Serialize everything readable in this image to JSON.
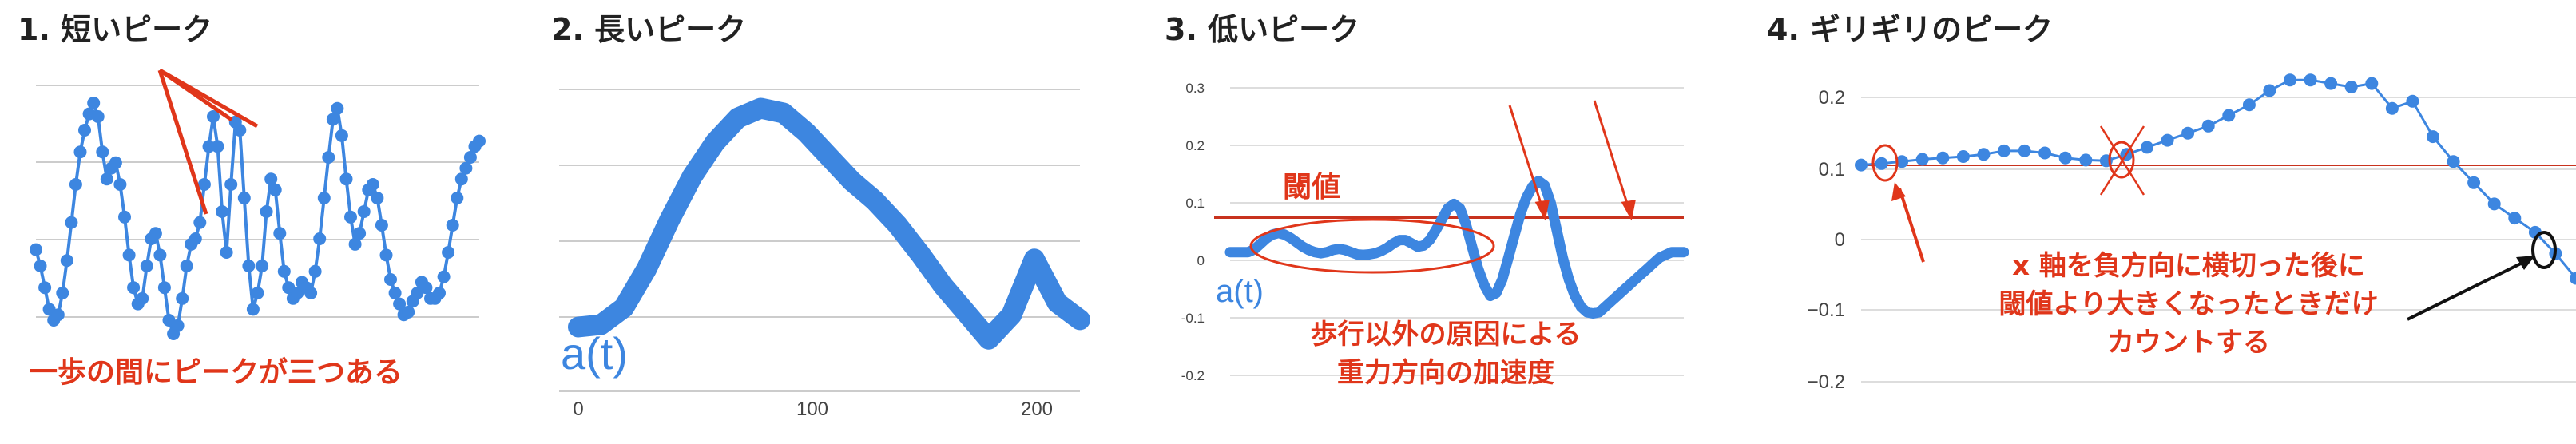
{
  "chart_data": [
    {
      "type": "line",
      "title": "1. 短いピーク",
      "annotation": "一歩の間にピークが三つある",
      "series": [
        {
          "x": [
            0,
            1,
            2,
            3,
            4,
            5,
            6,
            7,
            8,
            9,
            10,
            11,
            12,
            13,
            14,
            15,
            16,
            17,
            18,
            19,
            20,
            21,
            22,
            23,
            24,
            25,
            26,
            27,
            28,
            29,
            30,
            31,
            32,
            33,
            34,
            35,
            36,
            37,
            38,
            39,
            40,
            41,
            42,
            43,
            44,
            45,
            46,
            47,
            48,
            49,
            50,
            51,
            52,
            53,
            54,
            55,
            56,
            57,
            58,
            59,
            60,
            61,
            62,
            63,
            64,
            65,
            66,
            67,
            68,
            69,
            70,
            71,
            72,
            73,
            74,
            75,
            76,
            77,
            78,
            79,
            80,
            81,
            82,
            83,
            84,
            85,
            86,
            87,
            88,
            89,
            90,
            91,
            92,
            93,
            94,
            95,
            96,
            97,
            98,
            99,
            100
          ],
          "y": [
            0.36,
            0.3,
            0.22,
            0.14,
            0.1,
            0.12,
            0.2,
            0.32,
            0.46,
            0.6,
            0.72,
            0.8,
            0.86,
            0.9,
            0.85,
            0.72,
            0.62,
            0.66,
            0.68,
            0.6,
            0.48,
            0.34,
            0.22,
            0.16,
            0.18,
            0.3,
            0.4,
            0.42,
            0.34,
            0.22,
            0.1,
            0.05,
            0.08,
            0.18,
            0.3,
            0.38,
            0.4,
            0.46,
            0.6,
            0.74,
            0.85,
            0.74,
            0.5,
            0.35,
            0.6,
            0.83,
            0.8,
            0.55,
            0.3,
            0.14,
            0.2,
            0.3,
            0.5,
            0.62,
            0.58,
            0.42,
            0.28,
            0.22,
            0.18,
            0.2,
            0.24,
            0.22,
            0.2,
            0.28,
            0.4,
            0.55,
            0.7,
            0.84,
            0.88,
            0.78,
            0.62,
            0.48,
            0.38,
            0.42,
            0.5,
            0.58,
            0.6,
            0.55,
            0.45,
            0.34,
            0.25,
            0.2,
            0.16,
            0.12,
            0.13,
            0.17,
            0.2,
            0.24,
            0.22,
            0.18,
            0.18,
            0.2,
            0.26,
            0.35,
            0.45,
            0.55,
            0.62,
            0.66,
            0.7,
            0.74,
            0.76
          ]
        }
      ]
    },
    {
      "type": "line",
      "title": "2. 長いピーク",
      "xticks": [
        "0",
        "100",
        "200"
      ],
      "series_label": "a(t)",
      "xlim": [
        0,
        220
      ],
      "series": [
        {
          "x": [
            0,
            10,
            20,
            30,
            40,
            50,
            60,
            70,
            80,
            90,
            100,
            110,
            120,
            130,
            140,
            150,
            160,
            170,
            180,
            190,
            200,
            210,
            220
          ],
          "y": [
            0.0,
            0.01,
            0.08,
            0.24,
            0.44,
            0.62,
            0.76,
            0.86,
            0.9,
            0.88,
            0.8,
            0.7,
            0.6,
            0.52,
            0.42,
            0.3,
            0.17,
            0.06,
            -0.05,
            0.05,
            0.28,
            0.1,
            0.03
          ]
        }
      ]
    },
    {
      "type": "line",
      "title": "3. 低いピーク",
      "yticks": [
        "0.3",
        "0.2",
        "0.1",
        "0",
        "-0.1",
        "-0.2"
      ],
      "ylim": [
        -0.23,
        0.32
      ],
      "series_label": "a(t)",
      "threshold_label": "閾値",
      "threshold": 0.075,
      "annotation_lines": [
        "歩行以外の原因による",
        "重力方向の加速度"
      ],
      "series": [
        {
          "x": [
            0,
            1,
            2,
            3,
            4,
            5,
            6,
            7,
            8,
            9,
            10,
            11,
            12,
            13,
            14,
            15,
            16,
            17,
            18,
            19,
            20,
            21,
            22,
            23,
            24,
            25,
            26,
            27,
            28,
            29,
            30,
            31,
            32,
            33,
            34,
            35,
            36,
            37,
            38,
            39,
            40,
            41,
            42,
            43,
            44,
            45,
            46,
            47,
            48,
            49,
            50,
            51,
            52,
            53,
            54,
            55,
            56,
            57,
            58,
            59,
            60,
            61,
            62,
            63,
            64,
            65,
            66,
            67,
            68,
            69,
            70,
            71,
            72,
            73,
            74,
            75
          ],
          "y": [
            0.0,
            0.0,
            0.0,
            0.0,
            0.005,
            0.015,
            0.025,
            0.032,
            0.035,
            0.032,
            0.026,
            0.018,
            0.01,
            0.004,
            0.0,
            -0.002,
            0.0,
            0.004,
            0.006,
            0.004,
            0.0,
            -0.004,
            -0.005,
            -0.004,
            -0.002,
            0.002,
            0.008,
            0.016,
            0.022,
            0.022,
            0.016,
            0.01,
            0.012,
            0.022,
            0.04,
            0.06,
            0.08,
            0.088,
            0.08,
            0.05,
            0.01,
            -0.03,
            -0.06,
            -0.08,
            -0.075,
            -0.05,
            -0.01,
            0.03,
            0.07,
            0.1,
            0.12,
            0.13,
            0.122,
            0.09,
            0.04,
            -0.01,
            -0.05,
            -0.08,
            -0.1,
            -0.11,
            -0.112,
            -0.11,
            -0.1,
            -0.09,
            -0.08,
            -0.07,
            -0.06,
            -0.05,
            -0.04,
            -0.03,
            -0.02,
            -0.01,
            -0.005,
            0.0,
            0.0,
            0.0
          ]
        }
      ]
    },
    {
      "type": "line",
      "title": "4. ギリギリのピーク",
      "yticks": [
        "0.2",
        "0.1",
        "0",
        "−0.1",
        "−0.2"
      ],
      "ylim": [
        -0.22,
        0.24
      ],
      "threshold": 0.105,
      "annotation_lines": [
        "x 軸を負方向に横切った後に",
        "閾値より大きくなったときだけ",
        "カウントする"
      ],
      "series": [
        {
          "x": [
            0,
            1,
            2,
            3,
            4,
            5,
            6,
            7,
            8,
            9,
            10,
            11,
            12,
            13,
            14,
            15,
            16,
            17,
            18,
            19,
            20,
            21,
            22,
            23,
            24,
            25,
            26,
            27,
            28,
            29,
            30,
            31,
            32,
            33,
            34,
            35
          ],
          "y": [
            0.095,
            0.097,
            0.1,
            0.103,
            0.105,
            0.107,
            0.11,
            0.115,
            0.115,
            0.112,
            0.105,
            0.102,
            0.101,
            0.11,
            0.12,
            0.13,
            0.14,
            0.15,
            0.165,
            0.18,
            0.2,
            0.215,
            0.215,
            0.21,
            0.205,
            0.21,
            0.175,
            0.185,
            0.135,
            0.1,
            0.07,
            0.04,
            0.02,
            0.0,
            -0.03,
            -0.065
          ]
        }
      ]
    }
  ]
}
